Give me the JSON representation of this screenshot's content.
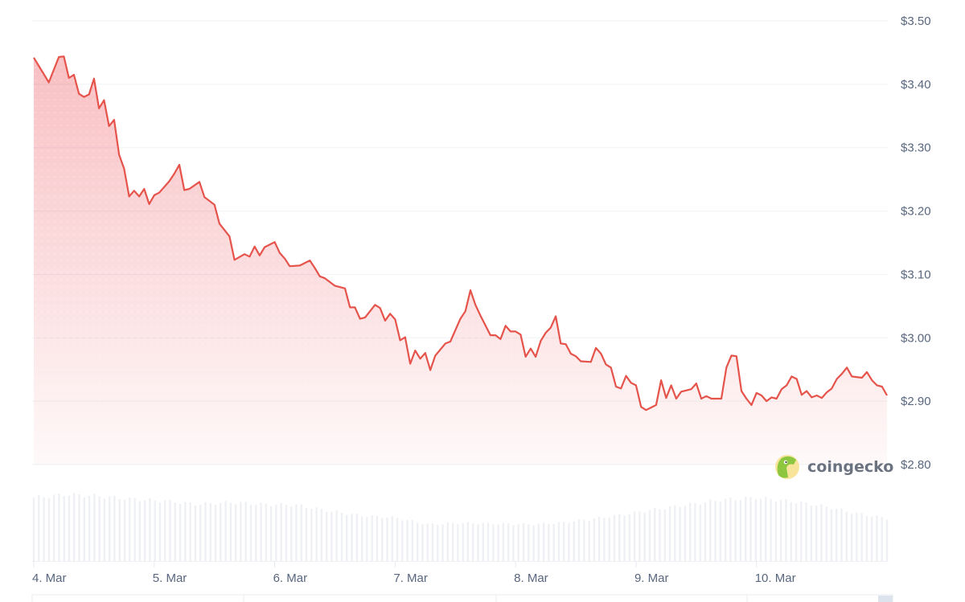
{
  "chart_data": {
    "type": "area",
    "title": "",
    "xlabel": "",
    "ylabel": "",
    "ylim": [
      2.8,
      3.5
    ],
    "yticks": [
      "$3.50",
      "$3.40",
      "$3.30",
      "$3.20",
      "$3.10",
      "$3.00",
      "$2.90",
      "$2.80"
    ],
    "ytick_values": [
      3.5,
      3.4,
      3.3,
      3.2,
      3.1,
      3.0,
      2.9,
      2.8
    ],
    "xticks": [
      "4. Mar",
      "5. Mar",
      "6. Mar",
      "7. Mar",
      "8. Mar",
      "9. Mar",
      "10. Mar"
    ],
    "grid": true,
    "y_axis_side": "right",
    "colors": {
      "line": "#e5534b",
      "fill": "#ea3943",
      "volume": "#eef0f4",
      "grid": "#eff2f5"
    },
    "series": [
      {
        "points": [
          [
            "4 Mar 00:00",
            3.442
          ],
          [
            "4 Mar 03:00",
            3.403
          ],
          [
            "4 Mar 05:00",
            3.443
          ],
          [
            "4 Mar 06:00",
            3.444
          ],
          [
            "4 Mar 07:00",
            3.41
          ],
          [
            "4 Mar 08:00",
            3.415
          ],
          [
            "4 Mar 09:00",
            3.385
          ],
          [
            "4 Mar 10:00",
            3.38
          ],
          [
            "4 Mar 11:00",
            3.384
          ],
          [
            "4 Mar 12:00",
            3.409
          ],
          [
            "4 Mar 13:00",
            3.362
          ],
          [
            "4 Mar 14:00",
            3.375
          ],
          [
            "4 Mar 15:00",
            3.334
          ],
          [
            "4 Mar 16:00",
            3.344
          ],
          [
            "4 Mar 17:00",
            3.289
          ],
          [
            "4 Mar 18:00",
            3.267
          ],
          [
            "4 Mar 19:00",
            3.223
          ],
          [
            "4 Mar 20:00",
            3.232
          ],
          [
            "4 Mar 21:00",
            3.223
          ],
          [
            "4 Mar 22:00",
            3.235
          ],
          [
            "4 Mar 23:00",
            3.211
          ],
          [
            "5 Mar 00:00",
            3.225
          ],
          [
            "5 Mar 01:00",
            3.229
          ],
          [
            "5 Mar 03:00",
            3.247
          ],
          [
            "5 Mar 04:00",
            3.259
          ],
          [
            "5 Mar 05:00",
            3.273
          ],
          [
            "5 Mar 06:00",
            3.233
          ],
          [
            "5 Mar 07:00",
            3.235
          ],
          [
            "5 Mar 09:00",
            3.246
          ],
          [
            "5 Mar 10:00",
            3.222
          ],
          [
            "5 Mar 12:00",
            3.21
          ],
          [
            "5 Mar 13:00",
            3.18
          ],
          [
            "5 Mar 15:00",
            3.16
          ],
          [
            "5 Mar 16:00",
            3.123
          ],
          [
            "5 Mar 18:00",
            3.132
          ],
          [
            "5 Mar 19:00",
            3.128
          ],
          [
            "5 Mar 20:00",
            3.144
          ],
          [
            "5 Mar 21:00",
            3.13
          ],
          [
            "5 Mar 22:00",
            3.143
          ],
          [
            "6 Mar 00:00",
            3.151
          ],
          [
            "6 Mar 01:00",
            3.134
          ],
          [
            "6 Mar 02:00",
            3.125
          ],
          [
            "6 Mar 03:00",
            3.113
          ],
          [
            "6 Mar 05:00",
            3.114
          ],
          [
            "6 Mar 07:00",
            3.122
          ],
          [
            "6 Mar 08:00",
            3.11
          ],
          [
            "6 Mar 09:00",
            3.097
          ],
          [
            "6 Mar 10:00",
            3.094
          ],
          [
            "6 Mar 12:00",
            3.082
          ],
          [
            "6 Mar 14:00",
            3.078
          ],
          [
            "6 Mar 15:00",
            3.048
          ],
          [
            "6 Mar 16:00",
            3.048
          ],
          [
            "6 Mar 17:00",
            3.03
          ],
          [
            "6 Mar 18:00",
            3.032
          ],
          [
            "6 Mar 20:00",
            3.052
          ],
          [
            "6 Mar 21:00",
            3.047
          ],
          [
            "6 Mar 22:00",
            3.027
          ],
          [
            "6 Mar 23:00",
            3.038
          ],
          [
            "7 Mar 00:00",
            3.029
          ],
          [
            "7 Mar 01:00",
            2.996
          ],
          [
            "7 Mar 02:00",
            3.001
          ],
          [
            "7 Mar 03:00",
            2.959
          ],
          [
            "7 Mar 04:00",
            2.98
          ],
          [
            "7 Mar 05:00",
            2.967
          ],
          [
            "7 Mar 06:00",
            2.976
          ],
          [
            "7 Mar 07:00",
            2.949
          ],
          [
            "7 Mar 08:00",
            2.972
          ],
          [
            "7 Mar 10:00",
            2.991
          ],
          [
            "7 Mar 11:00",
            2.994
          ],
          [
            "7 Mar 13:00",
            3.03
          ],
          [
            "7 Mar 14:00",
            3.042
          ],
          [
            "7 Mar 15:00",
            3.075
          ],
          [
            "7 Mar 16:00",
            3.052
          ],
          [
            "7 Mar 17:00",
            3.035
          ],
          [
            "7 Mar 19:00",
            3.004
          ],
          [
            "7 Mar 20:00",
            3.004
          ],
          [
            "7 Mar 21:00",
            2.998
          ],
          [
            "7 Mar 22:00",
            3.019
          ],
          [
            "7 Mar 23:00",
            3.01
          ],
          [
            "8 Mar 00:00",
            3.01
          ],
          [
            "8 Mar 01:00",
            3.005
          ],
          [
            "8 Mar 02:00",
            2.97
          ],
          [
            "8 Mar 03:00",
            2.983
          ],
          [
            "8 Mar 04:00",
            2.97
          ],
          [
            "8 Mar 05:00",
            2.995
          ],
          [
            "8 Mar 06:00",
            3.008
          ],
          [
            "8 Mar 07:00",
            3.016
          ],
          [
            "8 Mar 08:00",
            3.034
          ],
          [
            "8 Mar 09:00",
            2.991
          ],
          [
            "8 Mar 10:00",
            2.99
          ],
          [
            "8 Mar 11:00",
            2.975
          ],
          [
            "8 Mar 12:00",
            2.971
          ],
          [
            "8 Mar 13:00",
            2.963
          ],
          [
            "8 Mar 15:00",
            2.962
          ],
          [
            "8 Mar 16:00",
            2.984
          ],
          [
            "8 Mar 17:00",
            2.975
          ],
          [
            "8 Mar 18:00",
            2.958
          ],
          [
            "8 Mar 19:00",
            2.953
          ],
          [
            "8 Mar 20:00",
            2.923
          ],
          [
            "8 Mar 21:00",
            2.92
          ],
          [
            "8 Mar 22:00",
            2.94
          ],
          [
            "8 Mar 23:00",
            2.929
          ],
          [
            "9 Mar 00:00",
            2.925
          ],
          [
            "9 Mar 01:00",
            2.891
          ],
          [
            "9 Mar 02:00",
            2.886
          ],
          [
            "9 Mar 04:00",
            2.894
          ],
          [
            "9 Mar 05:00",
            2.933
          ],
          [
            "9 Mar 06:00",
            2.905
          ],
          [
            "9 Mar 07:00",
            2.925
          ],
          [
            "9 Mar 08:00",
            2.904
          ],
          [
            "9 Mar 09:00",
            2.915
          ],
          [
            "9 Mar 11:00",
            2.919
          ],
          [
            "9 Mar 12:00",
            2.928
          ],
          [
            "9 Mar 13:00",
            2.904
          ],
          [
            "9 Mar 14:00",
            2.908
          ],
          [
            "9 Mar 15:00",
            2.904
          ],
          [
            "9 Mar 17:00",
            2.904
          ],
          [
            "9 Mar 18:00",
            2.953
          ],
          [
            "9 Mar 19:00",
            2.972
          ],
          [
            "9 Mar 20:00",
            2.971
          ],
          [
            "9 Mar 21:00",
            2.916
          ],
          [
            "9 Mar 22:00",
            2.904
          ],
          [
            "9 Mar 23:00",
            2.894
          ],
          [
            "10 Mar 00:00",
            2.913
          ],
          [
            "10 Mar 01:00",
            2.909
          ],
          [
            "10 Mar 02:00",
            2.9
          ],
          [
            "10 Mar 03:00",
            2.906
          ],
          [
            "10 Mar 04:00",
            2.904
          ],
          [
            "10 Mar 05:00",
            2.919
          ],
          [
            "10 Mar 06:00",
            2.925
          ],
          [
            "10 Mar 07:00",
            2.939
          ],
          [
            "10 Mar 08:00",
            2.935
          ],
          [
            "10 Mar 09:00",
            2.91
          ],
          [
            "10 Mar 10:00",
            2.916
          ],
          [
            "10 Mar 11:00",
            2.906
          ],
          [
            "10 Mar 12:00",
            2.909
          ],
          [
            "10 Mar 13:00",
            2.905
          ],
          [
            "10 Mar 14:00",
            2.914
          ],
          [
            "10 Mar 15:00",
            2.92
          ],
          [
            "10 Mar 16:00",
            2.935
          ],
          [
            "10 Mar 17:00",
            2.943
          ],
          [
            "10 Mar 18:00",
            2.953
          ],
          [
            "10 Mar 19:00",
            2.939
          ],
          [
            "10 Mar 21:00",
            2.937
          ],
          [
            "10 Mar 22:00",
            2.946
          ],
          [
            "10 Mar 23:00",
            2.933
          ],
          [
            "11 Mar 00:00",
            2.925
          ],
          [
            "11 Mar 01:00",
            2.923
          ],
          [
            "11 Mar 02:00",
            2.909
          ]
        ]
      }
    ],
    "volume_relative": [
      0.95,
      1.0,
      0.97,
      0.93,
      0.9,
      0.85,
      0.88,
      0.85,
      0.84,
      0.75,
      0.68,
      0.65,
      0.55,
      0.57,
      0.56,
      0.55,
      0.57,
      0.63,
      0.7,
      0.78,
      0.85,
      0.92,
      0.95,
      0.9,
      0.83,
      0.72,
      0.64
    ]
  },
  "watermark": {
    "brand": "coingecko",
    "icon": "gecko-logo-icon"
  }
}
